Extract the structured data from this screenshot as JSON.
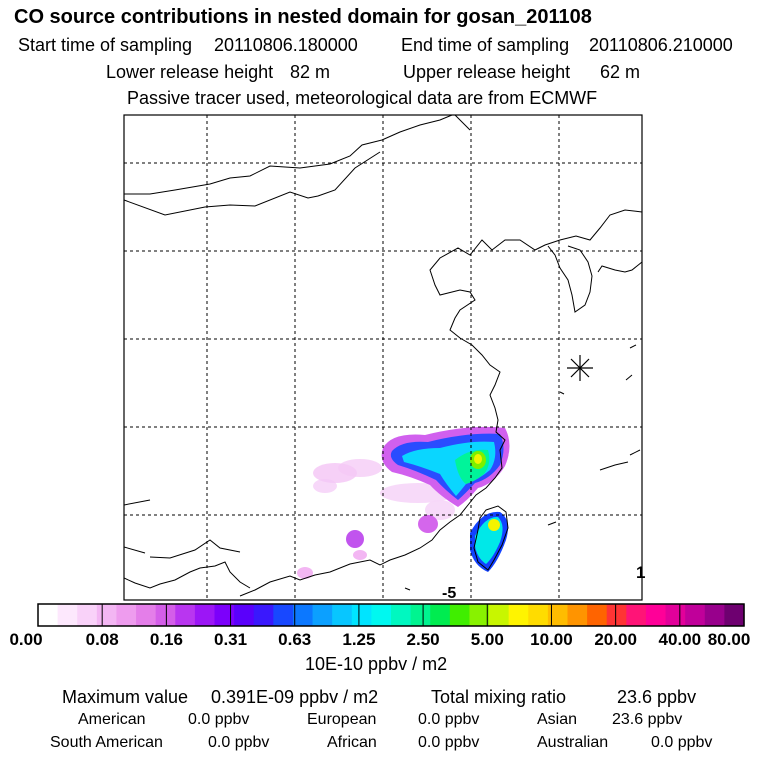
{
  "header": {
    "title": "CO  source contributions in nested domain for gosan_201108",
    "start_label": "Start time of sampling",
    "start_value": "20110806.180000",
    "end_label": "End time of sampling",
    "end_value": "20110806.210000",
    "lower_label": "Lower release height",
    "lower_value": "82 m",
    "upper_label": "Upper release height",
    "upper_value": "62 m",
    "tracer_note": "Passive tracer used, meteorological data are from ECMWF"
  },
  "map": {
    "corner_label": "1",
    "marker_label": "-5"
  },
  "colorbar": {
    "ticks": [
      "0.00",
      "0.08",
      "0.16",
      "0.31",
      "0.63",
      "1.25",
      "2.50",
      "5.00",
      "10.00",
      "20.00",
      "40.00",
      "80.00"
    ],
    "colors": [
      "#ffffff",
      "#fde8fd",
      "#f9d2f9",
      "#f3b6f3",
      "#ee9cee",
      "#e47ee9",
      "#d45ee9",
      "#b936f0",
      "#9c16f6",
      "#7c00fb",
      "#5a00fb",
      "#3a18fd",
      "#1848ff",
      "#0c78ff",
      "#0ca0ff",
      "#08c6ff",
      "#00e4ff",
      "#00f8f0",
      "#00f8c0",
      "#00f490",
      "#00ec50",
      "#40ee00",
      "#88f200",
      "#c8f600",
      "#fff400",
      "#ffdc00",
      "#ffbc00",
      "#ff9400",
      "#ff6400",
      "#ff3434",
      "#ff1477",
      "#ff0098",
      "#e2009a",
      "#c0009a",
      "#98008c",
      "#6e0070"
    ],
    "unit": "10E-10 ppbv / m2"
  },
  "summary": {
    "max_label": "Maximum value",
    "max_value": "0.391E-09 ppbv / m2",
    "total_label": "Total mixing ratio",
    "total_value": "23.6 ppbv",
    "american_label": "American",
    "american_value": "0.0 ppbv",
    "european_label": "European",
    "european_value": "0.0 ppbv",
    "asian_label": "Asian",
    "asian_value": "23.6 ppbv",
    "south_american_label": "South American",
    "south_american_value": "0.0 ppbv",
    "african_label": "African",
    "african_value": "0.0 ppbv",
    "australian_label": "Australian",
    "australian_value": "0.0 ppbv"
  }
}
